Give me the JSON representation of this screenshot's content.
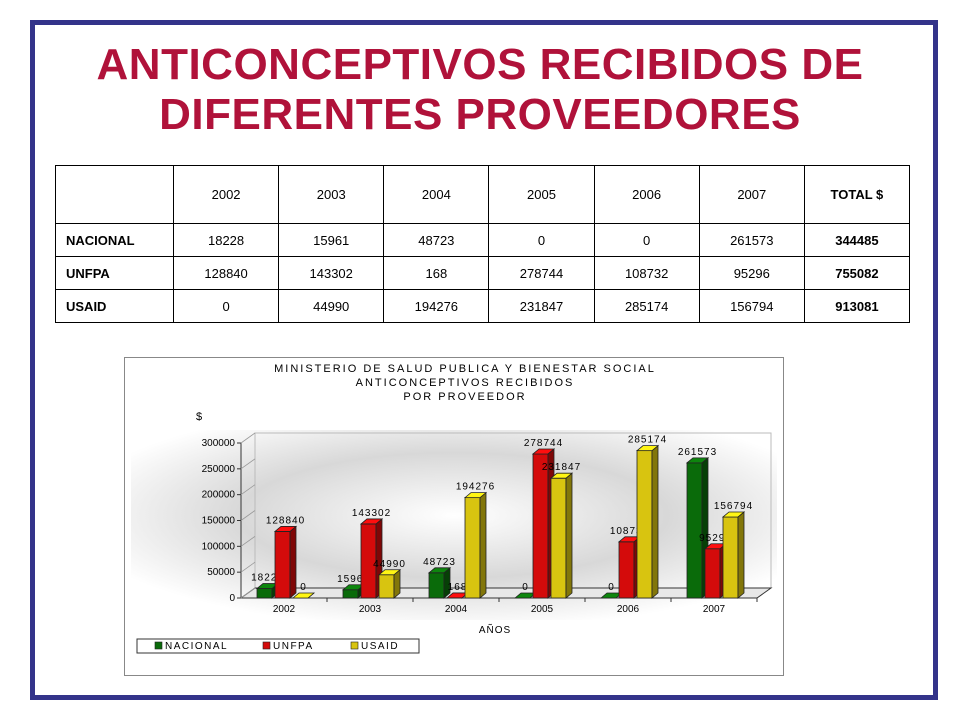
{
  "title": {
    "line1": "ANTICONCEPTIVOS RECIBIDOS DE",
    "line2": "DIFERENTES PROVEEDORES"
  },
  "table": {
    "columns": [
      "",
      "2002",
      "2003",
      "2004",
      "2005",
      "2006",
      "2007",
      "TOTAL $"
    ],
    "rows": [
      {
        "label": "NACIONAL",
        "values": [
          "18228",
          "15961",
          "48723",
          "0",
          "0",
          "261573"
        ],
        "total": "344485"
      },
      {
        "label": "UNFPA",
        "values": [
          "128840",
          "143302",
          "168",
          "278744",
          "108732",
          "95296"
        ],
        "total": "755082"
      },
      {
        "label": "USAID",
        "values": [
          "0",
          "44990",
          "194276",
          "231847",
          "285174",
          "156794"
        ],
        "total": "913081"
      }
    ]
  },
  "chart_data": {
    "type": "bar",
    "title": [
      "MINISTERIO DE SALUD PUBLICA Y BIENESTAR SOCIAL",
      "ANTICONCEPTIVOS RECIBIDOS",
      "POR PROVEEDOR"
    ],
    "ylabel": "$",
    "xlabel": "AÑOS",
    "categories": [
      "2002",
      "2003",
      "2004",
      "2005",
      "2006",
      "2007"
    ],
    "ylim": [
      0,
      300000
    ],
    "yticks": [
      0,
      50000,
      100000,
      150000,
      200000,
      250000,
      300000
    ],
    "legend_position": "bottom-left",
    "series": [
      {
        "name": "NACIONAL",
        "color": "#0a6b0a",
        "values": [
          18228,
          15961,
          48723,
          0,
          0,
          261573
        ]
      },
      {
        "name": "UNFPA",
        "color": "#d40b0b",
        "values": [
          128840,
          143302,
          168,
          278744,
          108732,
          95296
        ]
      },
      {
        "name": "USAID",
        "color": "#d8c410",
        "values": [
          0,
          44990,
          194276,
          231847,
          285174,
          156794
        ]
      }
    ]
  }
}
